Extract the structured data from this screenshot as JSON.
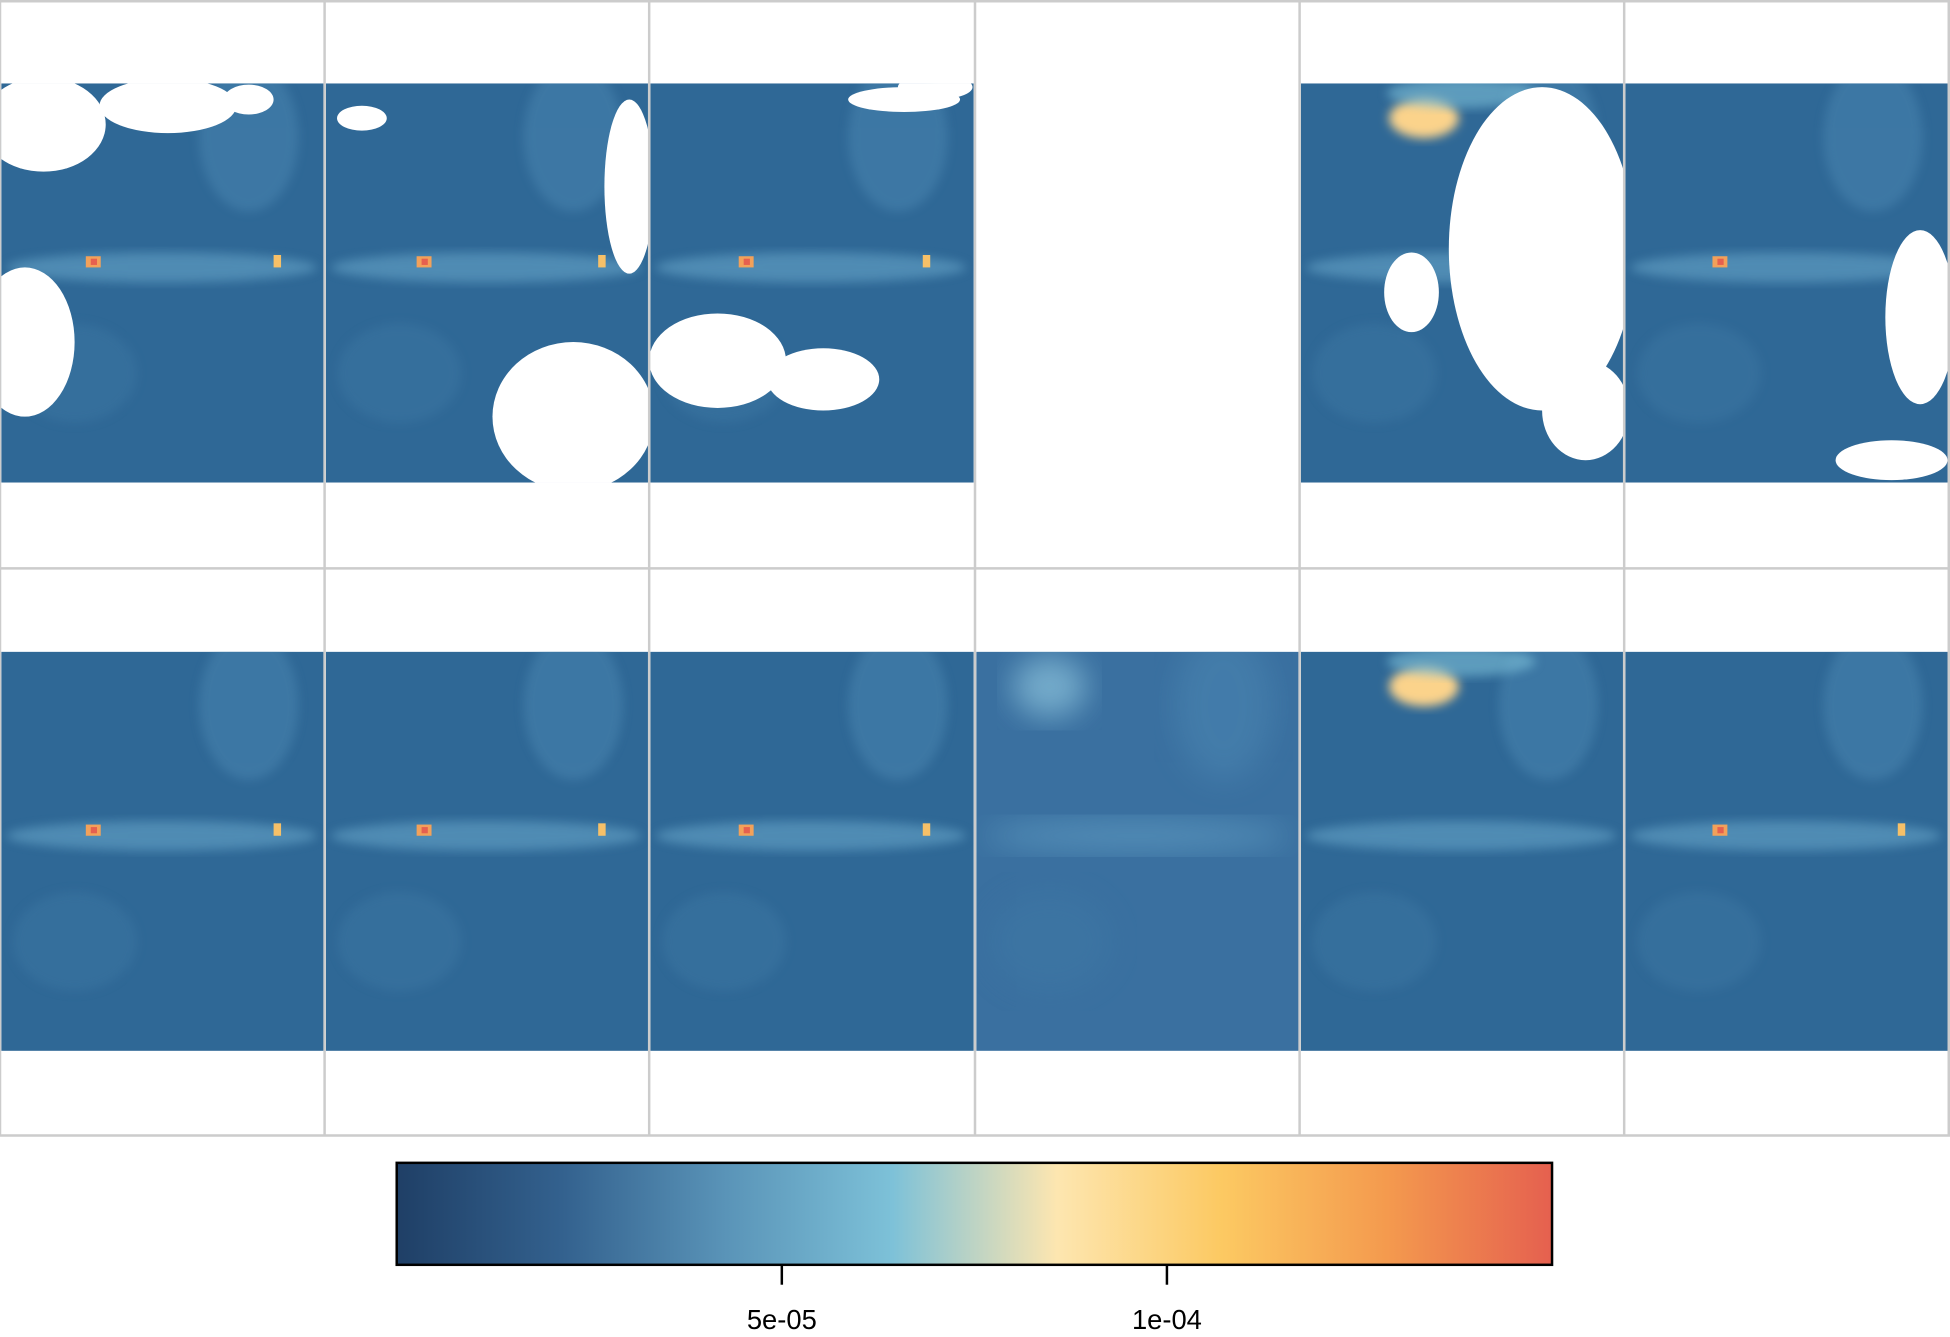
{
  "chart_data": {
    "type": "colorbar",
    "lim": [
      0,
      0.00015
    ],
    "ticks": [
      {
        "value": 5e-05,
        "label": "5e-05"
      },
      {
        "value": 0.0001,
        "label": "1e-04"
      }
    ],
    "colors": [
      "#1f3f66",
      "#33618e",
      "#5a94b8",
      "#7dc1d8",
      "#fde6b0",
      "#fcc962",
      "#f49a4e",
      "#e5604f"
    ]
  }
}
